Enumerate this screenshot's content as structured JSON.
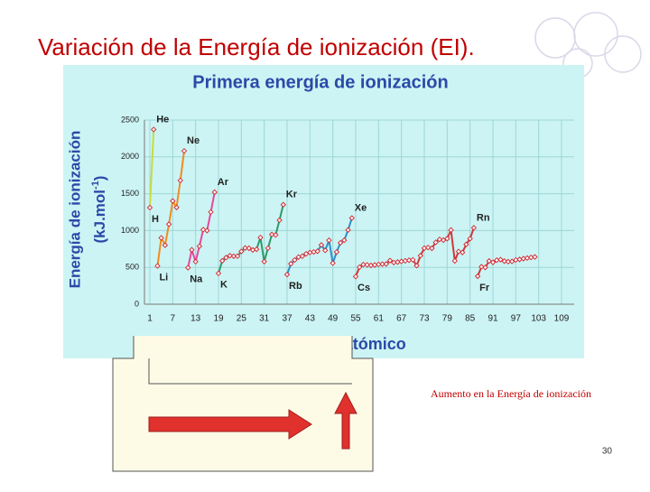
{
  "slide_title": "Variación de la Energía de ionización (EI).",
  "chart_data": {
    "type": "line",
    "title": "Primera energía de ionización",
    "y_label": "Energía de ionización",
    "y_label_unit": "(kJ.mol",
    "y_label_exp": "-1",
    "y_label_close": ")",
    "x_label": "nº atómico",
    "xlim": [
      1,
      109
    ],
    "xticks": [
      1,
      7,
      13,
      19,
      25,
      31,
      37,
      43,
      49,
      55,
      61,
      67,
      73,
      79,
      85,
      91,
      97,
      103,
      109
    ],
    "ylim": [
      0,
      2500
    ],
    "yticks": [
      0,
      500,
      1000,
      1500,
      2000,
      2500
    ],
    "grid": true,
    "marker_color": "#d0303a",
    "series": [
      {
        "color": "#c8dc3c",
        "x": [
          1,
          2
        ],
        "values": [
          1312,
          2372
        ]
      },
      {
        "color": "#f08c20",
        "x": [
          3,
          4,
          5,
          6,
          7,
          8,
          9,
          10
        ],
        "values": [
          520,
          900,
          801,
          1086,
          1402,
          1314,
          1681,
          2081
        ]
      },
      {
        "color": "#e8489c",
        "x": [
          11,
          12,
          13,
          14,
          15,
          16,
          17,
          18
        ],
        "values": [
          496,
          738,
          578,
          787,
          1012,
          1000,
          1251,
          1521
        ]
      },
      {
        "color": "#2f9a6a",
        "x": [
          19,
          20,
          21,
          22,
          23,
          24,
          25,
          26,
          27,
          28,
          29,
          30,
          31,
          32,
          33,
          34,
          35,
          36
        ],
        "values": [
          419,
          590,
          633,
          659,
          651,
          653,
          717,
          763,
          760,
          737,
          746,
          906,
          579,
          762,
          947,
          941,
          1140,
          1351
        ]
      },
      {
        "color": "#2f8fc8",
        "x": [
          37,
          38,
          39,
          40,
          41,
          42,
          43,
          44,
          45,
          46,
          47,
          48,
          49,
          50,
          51,
          52,
          53,
          54
        ],
        "values": [
          403,
          550,
          600,
          640,
          652,
          684,
          702,
          710,
          720,
          804,
          731,
          868,
          558,
          709,
          834,
          869,
          1008,
          1170
        ]
      },
      {
        "color": "#d03838",
        "x": [
          55,
          56,
          57,
          58,
          59,
          60,
          61,
          62,
          63,
          64,
          65,
          66,
          67,
          68,
          69,
          70,
          71,
          72,
          73,
          74,
          75,
          76,
          77,
          78,
          79,
          80,
          81,
          82,
          83,
          84,
          85,
          86
        ],
        "values": [
          376,
          503,
          538,
          534,
          527,
          533,
          540,
          545,
          547,
          593,
          566,
          573,
          581,
          589,
          597,
          603,
          524,
          659,
          761,
          770,
          760,
          840,
          880,
          870,
          890,
          1007,
          589,
          716,
          703,
          812,
          890,
          1037
        ]
      },
      {
        "color": "#d03838",
        "x": [
          87,
          88,
          89,
          90,
          91,
          92,
          93,
          94,
          95,
          96,
          97,
          98,
          99,
          100,
          101,
          102
        ],
        "values": [
          380,
          509,
          499,
          587,
          568,
          598,
          605,
          585,
          578,
          581,
          601,
          608,
          619,
          627,
          635,
          642
        ]
      }
    ],
    "annotations": [
      {
        "text": "He",
        "x": 2
      },
      {
        "text": "Ne",
        "x": 10
      },
      {
        "text": "Ar",
        "x": 18
      },
      {
        "text": "Kr",
        "x": 36
      },
      {
        "text": "Xe",
        "x": 54
      },
      {
        "text": "Rn",
        "x": 86
      },
      {
        "text": "H",
        "x": 1
      },
      {
        "text": "Li",
        "x": 3
      },
      {
        "text": "Na",
        "x": 11
      },
      {
        "text": "K",
        "x": 19
      },
      {
        "text": "Rb",
        "x": 37
      },
      {
        "text": "Cs",
        "x": 55
      },
      {
        "text": "Fr",
        "x": 87
      }
    ]
  },
  "arrow_caption": "Aumento en la Energía de ionización",
  "page_number": "30"
}
